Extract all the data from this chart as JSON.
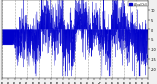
{
  "bg_color": "#f0f0f0",
  "plot_bg_color": "#ffffff",
  "line_color": "#0000cc",
  "grid_color": "#888888",
  "n_points": 1440,
  "ylim": [
    -25,
    15
  ],
  "xlim": [
    0,
    1440
  ],
  "legend_label": "Wind Chill",
  "legend_color": "#0000cc",
  "yticks": [
    10,
    5,
    0,
    -5,
    -10,
    -15,
    -20
  ],
  "ylabel_fontsize": 2.5,
  "xlabel_fontsize": 2.0,
  "grid_interval": 120,
  "flat_value": -8.0,
  "flat_end": 100,
  "seed": 17
}
